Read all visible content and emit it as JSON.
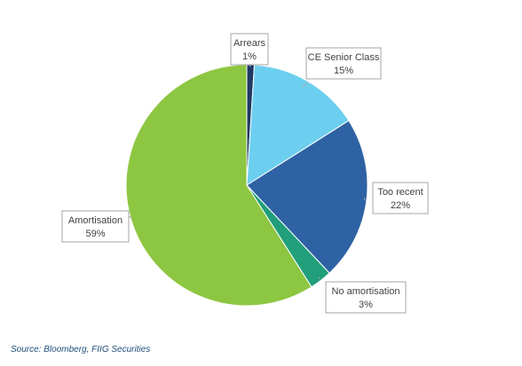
{
  "chart_data": {
    "type": "pie",
    "title": "",
    "start": "12 o'clock",
    "direction": "clockwise",
    "legend": "none",
    "data_labels": "category and percentage in callouts",
    "slices": [
      {
        "label": "Arrears",
        "value": 1,
        "value_label": "1%",
        "color": "#1f3864"
      },
      {
        "label": "CE Senior Class",
        "value": 15,
        "value_label": "15%",
        "color": "#6dcff0"
      },
      {
        "label": "Too recent",
        "value": 22,
        "value_label": "22%",
        "color": "#2e62a4"
      },
      {
        "label": "No amortisation",
        "value": 3,
        "value_label": "3%",
        "color": "#219f7a"
      },
      {
        "label": "Amortisation",
        "value": 59,
        "value_label": "59%",
        "color": "#8dc641"
      }
    ]
  },
  "source": "Source: Bloomberg, FIIG Securities"
}
